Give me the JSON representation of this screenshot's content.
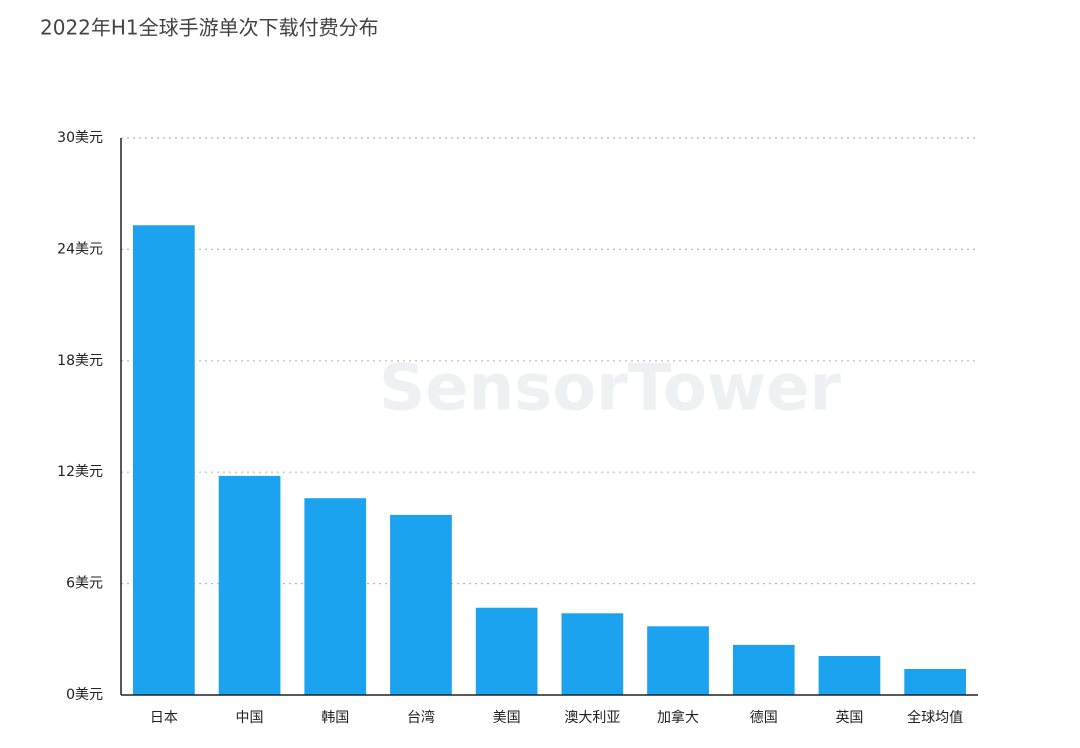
{
  "chart_data": {
    "type": "bar",
    "title": "2022年H1全球手游单次下载付费分布",
    "watermark": "SensorTower",
    "categories": [
      "日本",
      "中国",
      "韩国",
      "台湾",
      "美国",
      "澳大利亚",
      "加拿大",
      "德国",
      "英国",
      "全球均值"
    ],
    "values": [
      25.3,
      11.8,
      10.6,
      9.7,
      4.7,
      4.4,
      3.7,
      2.7,
      2.1,
      1.4
    ],
    "color": "#1ba3f0",
    "ylim": [
      0,
      30
    ],
    "yticks": [
      {
        "value": 0,
        "label": "0美元"
      },
      {
        "value": 6,
        "label": "6美元"
      },
      {
        "value": 12,
        "label": "12美元"
      },
      {
        "value": 18,
        "label": "18美元"
      },
      {
        "value": 24,
        "label": "24美元"
      },
      {
        "value": 30,
        "label": "30美元"
      }
    ],
    "grid": true
  }
}
